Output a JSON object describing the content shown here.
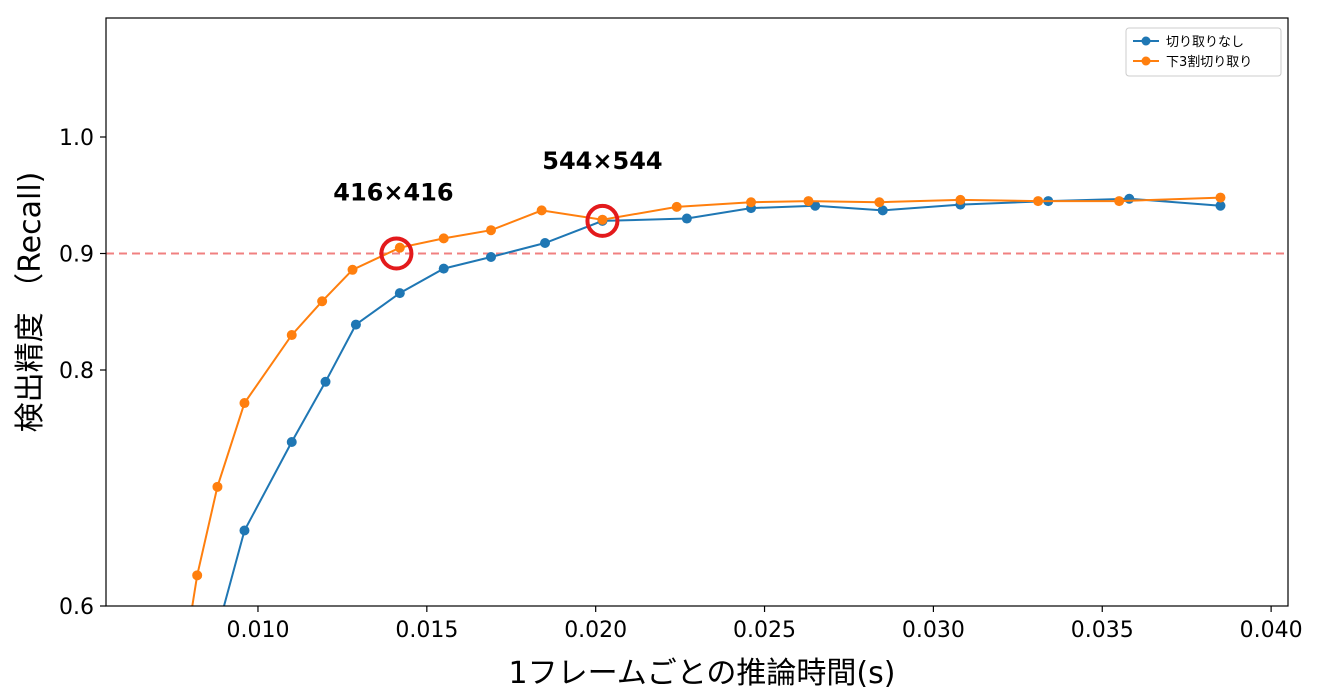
{
  "chart_data": {
    "type": "line",
    "xlabel": "1フレームごとの推論時間(s)",
    "ylabel": "検出精度 （Recall)",
    "xlim": [
      0.0055,
      0.0405
    ],
    "ylim": [
      0.6,
      1.102
    ],
    "y_scale": "custom-nonlinear (0.6 to 0.8 compressed relative to 0.8 to 1.0)",
    "x_ticks": [
      0.01,
      0.015,
      0.02,
      0.025,
      0.03,
      0.035,
      0.04
    ],
    "x_tick_labels": [
      "0.010",
      "0.015",
      "0.020",
      "0.025",
      "0.030",
      "0.035",
      "0.040"
    ],
    "y_ticks": [
      0.6,
      0.8,
      0.9,
      1.0
    ],
    "y_tick_labels": [
      "0.6",
      "0.8",
      "0.9",
      "1.0"
    ],
    "grid": false,
    "legend_position": "top-right",
    "series": [
      {
        "name": "切り取りなし",
        "color": "#1f77b4",
        "x": [
          0.0089,
          0.0096,
          0.011,
          0.012,
          0.0129,
          0.0142,
          0.0155,
          0.0169,
          0.0185,
          0.0202,
          0.0227,
          0.0246,
          0.0265,
          0.0285,
          0.0308,
          0.0334,
          0.0358,
          0.0385
        ],
        "y": [
          0.59,
          0.664,
          0.739,
          0.79,
          0.839,
          0.866,
          0.887,
          0.897,
          0.909,
          0.928,
          0.93,
          0.939,
          0.941,
          0.937,
          0.942,
          0.945,
          0.947,
          0.941
        ]
      },
      {
        "name": "下3割切り取り",
        "color": "#ff7f0e",
        "x": [
          0.008,
          0.0082,
          0.0088,
          0.0096,
          0.011,
          0.0119,
          0.0128,
          0.0142,
          0.0155,
          0.0169,
          0.0184,
          0.0202,
          0.0224,
          0.0246,
          0.0263,
          0.0284,
          0.0308,
          0.0331,
          0.0355,
          0.0385
        ],
        "y": [
          0.59,
          0.626,
          0.701,
          0.772,
          0.83,
          0.859,
          0.886,
          0.905,
          0.913,
          0.92,
          0.937,
          0.929,
          0.94,
          0.944,
          0.945,
          0.944,
          0.946,
          0.945,
          0.945,
          0.948
        ]
      }
    ],
    "reference_line": {
      "y": 0.9,
      "style": "dashed",
      "color": "#f08080"
    },
    "annotations": [
      {
        "text": "416×416",
        "x": 0.0141,
        "y": 0.9
      },
      {
        "text": "544×544",
        "x": 0.0202,
        "y": 0.928
      }
    ],
    "highlight_color": "#e31a1c"
  }
}
